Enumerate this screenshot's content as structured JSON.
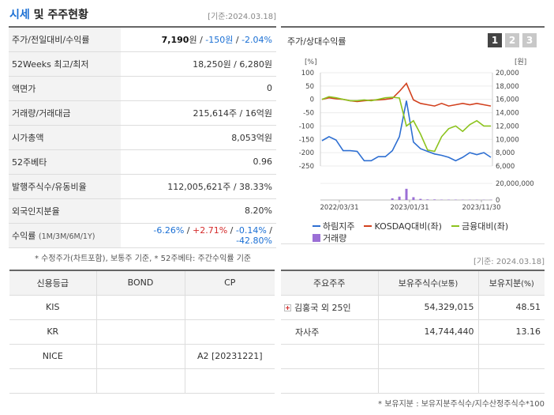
{
  "header": {
    "title_hl": "시세",
    "title_rest": " 및 주주현황",
    "base_date": "[기준:2024.03.18]"
  },
  "price_table": {
    "rows": [
      {
        "label": "주가/전일대비/수익률",
        "v1": "7,190",
        "u1": "원",
        "sep1": " / ",
        "v2": "-150원",
        "sep2": " / ",
        "v3": "-2.04%"
      },
      {
        "label": "52Weeks 최고/최저",
        "value": "18,250원 / 6,280원"
      },
      {
        "label": "액면가",
        "value": "0"
      },
      {
        "label": "거래량/거래대금",
        "value": "215,614주 / 16억원"
      },
      {
        "label": "시가총액",
        "value": "8,053억원"
      },
      {
        "label": "52주베타",
        "value": "0.96"
      },
      {
        "label": "발행주식수/유동비율",
        "value": "112,005,621주 / 38.33%"
      },
      {
        "label": "외국인지분율",
        "value": "8.20%"
      },
      {
        "label": "수익률",
        "label_sub": "(1M/3M/6M/1Y)",
        "r1": "-6.26%",
        "r2": "+2.71%",
        "r3": "-0.14%",
        "r4": "-42.80%",
        "sep": " / "
      }
    ],
    "note": "* 수정주가(차트포함), 보통주 기준, * 52주베타: 주간수익률 기준"
  },
  "chart_panel": {
    "title": "주가/상대수익률",
    "tabs": [
      "1",
      "2",
      "3"
    ],
    "left_unit": "[%]",
    "right_unit": "[원]",
    "legend": {
      "s1": "하림지주",
      "s2": "KOSDAQ대비(좌)",
      "s3": "금융대비(좌)",
      "s4": "거래량"
    },
    "colors": {
      "s1": "#2e6fd2",
      "s2": "#d2411e",
      "s3": "#8cc31e",
      "s4": "#9b6fd6"
    }
  },
  "chart_data": {
    "type": "line",
    "x_ticks": [
      "2022/03/31",
      "2023/01/31",
      "2023/11/30"
    ],
    "y_left_ticks": [
      100,
      50,
      0,
      -50,
      -100,
      -150,
      -200,
      -250
    ],
    "y_left_range": [
      -250,
      100
    ],
    "y_right_ticks": [
      "20,000",
      "18,000",
      "16,000",
      "14,000",
      "12,000",
      "10,000",
      "8,000",
      "6,000"
    ],
    "y_right_range": [
      6000,
      20000
    ],
    "volume_tick": "20,000,000",
    "volume_zero": "0",
    "series": [
      {
        "name": "하림지주",
        "axis": "right",
        "values": [
          9800,
          10400,
          9900,
          8300,
          8300,
          8200,
          6800,
          6800,
          7400,
          7400,
          8300,
          10400,
          15800,
          9600,
          8600,
          8200,
          7800,
          7600,
          7300,
          6800,
          7300,
          8000,
          7700,
          8000,
          7300
        ]
      },
      {
        "name": "KOSDAQ대비(좌)",
        "axis": "left",
        "values": [
          0,
          6,
          2,
          0,
          -5,
          -8,
          -5,
          -3,
          -2,
          0,
          4,
          30,
          60,
          -2,
          -15,
          -20,
          -25,
          -15,
          -25,
          -20,
          -15,
          -20,
          -15,
          -20,
          -25
        ]
      },
      {
        "name": "금융대비(좌)",
        "axis": "left",
        "values": [
          0,
          10,
          6,
          0,
          -5,
          -5,
          -2,
          -5,
          0,
          6,
          8,
          5,
          -100,
          -80,
          -130,
          -190,
          -195,
          -140,
          -110,
          -100,
          -120,
          -95,
          -80,
          -100,
          -100
        ]
      }
    ],
    "volume": [
      0,
      0,
      0,
      0,
      0,
      0,
      0,
      0,
      0,
      0,
      1.5,
      3,
      10,
      2.5,
      1,
      0.5,
      0.5,
      0.3,
      0.3,
      0.3,
      0.2,
      0.2,
      0.2,
      0.2,
      0.2
    ]
  },
  "holders_base_date": "[기준: 2024.03.18]",
  "credit_table": {
    "headers": [
      "신용등급",
      "BOND",
      "CP"
    ],
    "rows": [
      [
        "KIS",
        "",
        ""
      ],
      [
        "KR",
        "",
        ""
      ],
      [
        "NICE",
        "",
        "A2 [20231221]"
      ],
      [
        "",
        "",
        ""
      ]
    ]
  },
  "holder_table": {
    "h1": "주요주주",
    "h2": "보유주식수",
    "h2_sub": "(보통)",
    "h3": "보유지분",
    "h3_sub": "(%)",
    "rows": [
      {
        "name": "김홍국 외 25인",
        "shares": "54,329,015",
        "pct": "48.51",
        "expand": true
      },
      {
        "name": "자사주",
        "shares": "14,744,440",
        "pct": "13.16",
        "expand": false
      },
      {
        "name": "",
        "shares": "",
        "pct": "",
        "expand": false
      },
      {
        "name": "",
        "shares": "",
        "pct": "",
        "expand": false
      }
    ],
    "note": "* 보유지분 : 보유지분주식수/지수산정주식수*100"
  }
}
